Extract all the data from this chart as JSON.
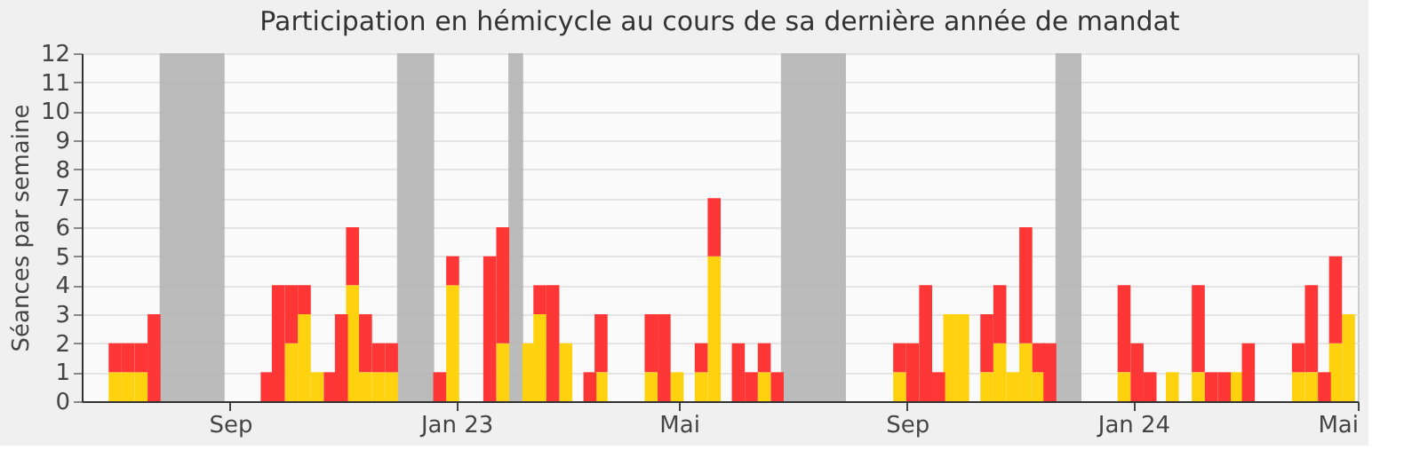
{
  "chart_data": {
    "type": "bar",
    "title": "Participation en hémicycle au cours de sa dernière année de mandat",
    "ylabel": "Séances par semaine",
    "stacked": true,
    "grid": "y",
    "x": [
      "2022-07-01",
      "2022-07-08",
      "2022-07-15",
      "2022-07-22",
      "2022-09-21",
      "2022-09-27",
      "2022-10-04",
      "2022-10-11",
      "2022-10-18",
      "2022-10-25",
      "2022-10-31",
      "2022-11-06",
      "2022-11-13",
      "2022-11-20",
      "2022-11-27",
      "2022-12-23",
      "2022-12-30",
      "2023-01-19",
      "2023-01-26",
      "2023-02-09",
      "2023-02-15",
      "2023-02-22",
      "2023-03-01",
      "2023-03-14",
      "2023-03-20",
      "2023-04-16",
      "2023-04-23",
      "2023-04-30",
      "2023-05-13",
      "2023-05-20",
      "2023-06-02",
      "2023-06-09",
      "2023-06-16",
      "2023-06-23",
      "2023-08-28",
      "2023-09-04",
      "2023-09-11",
      "2023-09-18",
      "2023-09-24",
      "2023-10-01",
      "2023-10-14",
      "2023-10-21",
      "2023-10-28",
      "2023-11-04",
      "2023-11-11",
      "2023-11-17",
      "2023-12-27",
      "2024-01-03",
      "2024-01-10",
      "2024-01-22",
      "2024-02-05",
      "2024-02-12",
      "2024-02-19",
      "2024-02-26",
      "2024-03-03",
      "2024-03-30",
      "2024-04-06",
      "2024-04-13",
      "2024-04-19",
      "2024-04-26"
    ],
    "series": [
      {
        "color": "#ffd20f",
        "values": [
          1,
          1,
          1,
          null,
          null,
          null,
          2,
          3,
          1,
          null,
          null,
          4,
          1,
          1,
          1,
          null,
          4,
          null,
          2,
          2,
          3,
          null,
          2,
          null,
          1,
          1,
          null,
          1,
          1,
          5,
          null,
          null,
          1,
          null,
          1,
          null,
          null,
          null,
          3,
          3,
          1,
          2,
          1,
          2,
          1,
          null,
          1,
          null,
          null,
          1,
          1,
          null,
          null,
          1,
          null,
          1,
          1,
          null,
          2,
          3
        ]
      },
      {
        "color": "#ff3636",
        "values": [
          1,
          1,
          1,
          3,
          1,
          4,
          2,
          1,
          null,
          1,
          3,
          2,
          2,
          1,
          1,
          1,
          1,
          5,
          4,
          null,
          1,
          4,
          null,
          1,
          2,
          2,
          3,
          null,
          1,
          2,
          2,
          1,
          1,
          1,
          1,
          2,
          4,
          1,
          null,
          null,
          2,
          2,
          null,
          4,
          1,
          2,
          3,
          2,
          1,
          null,
          3,
          1,
          1,
          null,
          2,
          1,
          3,
          1,
          3,
          null
        ]
      }
    ],
    "xlim": [
      "2022-06-13",
      "2024-05-01"
    ],
    "xticks": [
      {
        "value": "2022-09-01",
        "label": "Sep"
      },
      {
        "value": "2023-01-01",
        "label": "Jan 23"
      },
      {
        "value": "2023-05-01",
        "label": "Mai"
      },
      {
        "value": "2023-09-01",
        "label": "Sep"
      },
      {
        "value": "2024-01-01",
        "label": "Jan 24"
      },
      {
        "value": "2024-05-01",
        "label": "Mai"
      }
    ],
    "ylim": [
      0,
      12
    ],
    "yticks": [
      0,
      1,
      2,
      3,
      4,
      5,
      6,
      7,
      8,
      9,
      10,
      11,
      12
    ],
    "bands": [
      {
        "axis": "x",
        "from": "2022-07-25",
        "to": "2022-08-29",
        "color": "#b4b4b4"
      },
      {
        "axis": "x",
        "from": "2022-11-30",
        "to": "2022-12-20",
        "color": "#b4b4b4"
      },
      {
        "axis": "x",
        "from": "2023-01-29",
        "to": "2023-02-06",
        "color": "#b4b4b4"
      },
      {
        "axis": "x",
        "from": "2023-06-25",
        "to": "2023-07-30",
        "color": "#b4b4b4"
      },
      {
        "axis": "x",
        "from": "2023-11-20",
        "to": "2023-12-04",
        "color": "#b4b4b4"
      }
    ]
  }
}
